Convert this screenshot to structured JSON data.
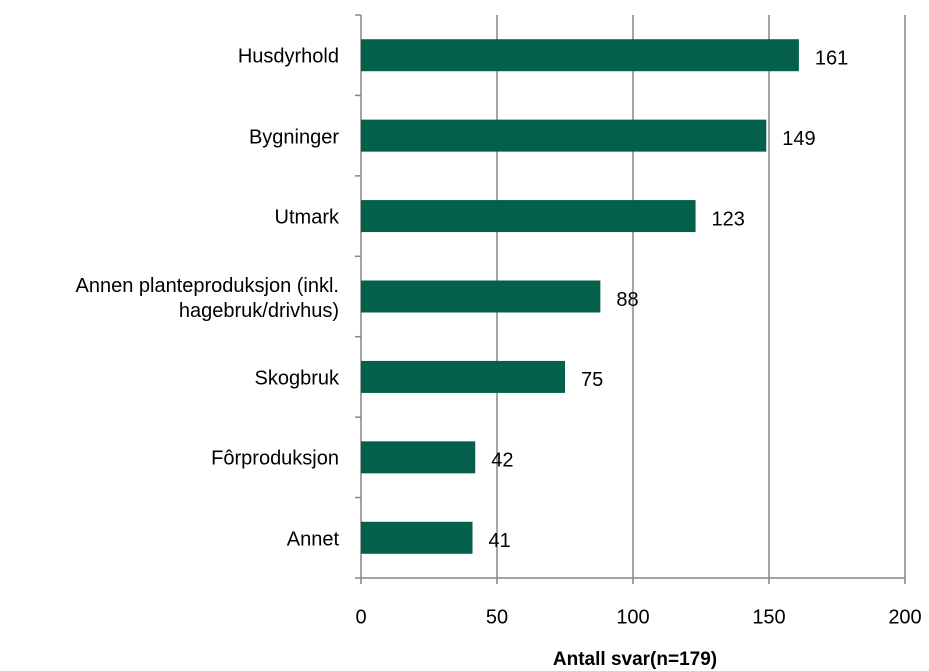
{
  "chart_data": {
    "type": "bar",
    "orientation": "horizontal",
    "categories": [
      "Husdyrhold",
      "Bygninger",
      "Utmark",
      "Annen planteproduksjon (inkl. hagebruk/drivhus)",
      "Skogbruk",
      "Fôrproduksjon",
      "Annet"
    ],
    "values": [
      161,
      149,
      123,
      88,
      75,
      42,
      41
    ],
    "color": "#045f4b",
    "xlabel": "Antall svar(n=179)",
    "xlim": [
      0,
      200
    ],
    "xticks": [
      0,
      50,
      100,
      150,
      200
    ],
    "grid": true
  }
}
